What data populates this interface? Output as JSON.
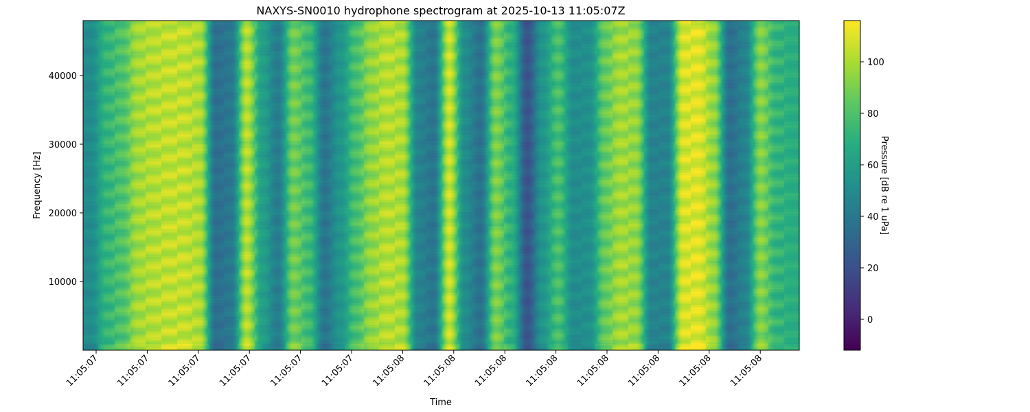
{
  "chart_data": {
    "type": "heatmap",
    "title": "NAXYS-SN0010 hydrophone spectrogram at 2025-10-13 11:05:07Z",
    "xlabel": "Time",
    "ylabel": "Frequency [Hz]",
    "colorbar_label": "Pressure [dB re 1 uPa]",
    "colormap": "viridis",
    "x_tick_labels": [
      "11:05:07",
      "11:05:07",
      "11:05:07",
      "11:05:07",
      "11:05:07",
      "11:05:07",
      "11:05:08",
      "11:05:08",
      "11:05:08",
      "11:05:08",
      "11:05:08",
      "11:05:08",
      "11:05:08",
      "11:05:08"
    ],
    "y_ticks": [
      10000,
      20000,
      30000,
      40000
    ],
    "y_tick_labels": [
      "10000",
      "20000",
      "30000",
      "40000"
    ],
    "ylim": [
      0,
      48000
    ],
    "colorbar_ticks": [
      0,
      20,
      40,
      60,
      80,
      100
    ],
    "colorbar_tick_labels": [
      "0",
      "20",
      "40",
      "60",
      "80",
      "100"
    ],
    "clim": [
      -12,
      116
    ],
    "column_mean_db": [
      50,
      72,
      80,
      98,
      102,
      104,
      104,
      100,
      35,
      40,
      102,
      60,
      42,
      88,
      75,
      38,
      55,
      78,
      95,
      102,
      100,
      45,
      38,
      106,
      50,
      36,
      90,
      70,
      22,
      55,
      78,
      50,
      52,
      85,
      98,
      95,
      45,
      45,
      108,
      110,
      95,
      35,
      45,
      92,
      72,
      68
    ]
  }
}
